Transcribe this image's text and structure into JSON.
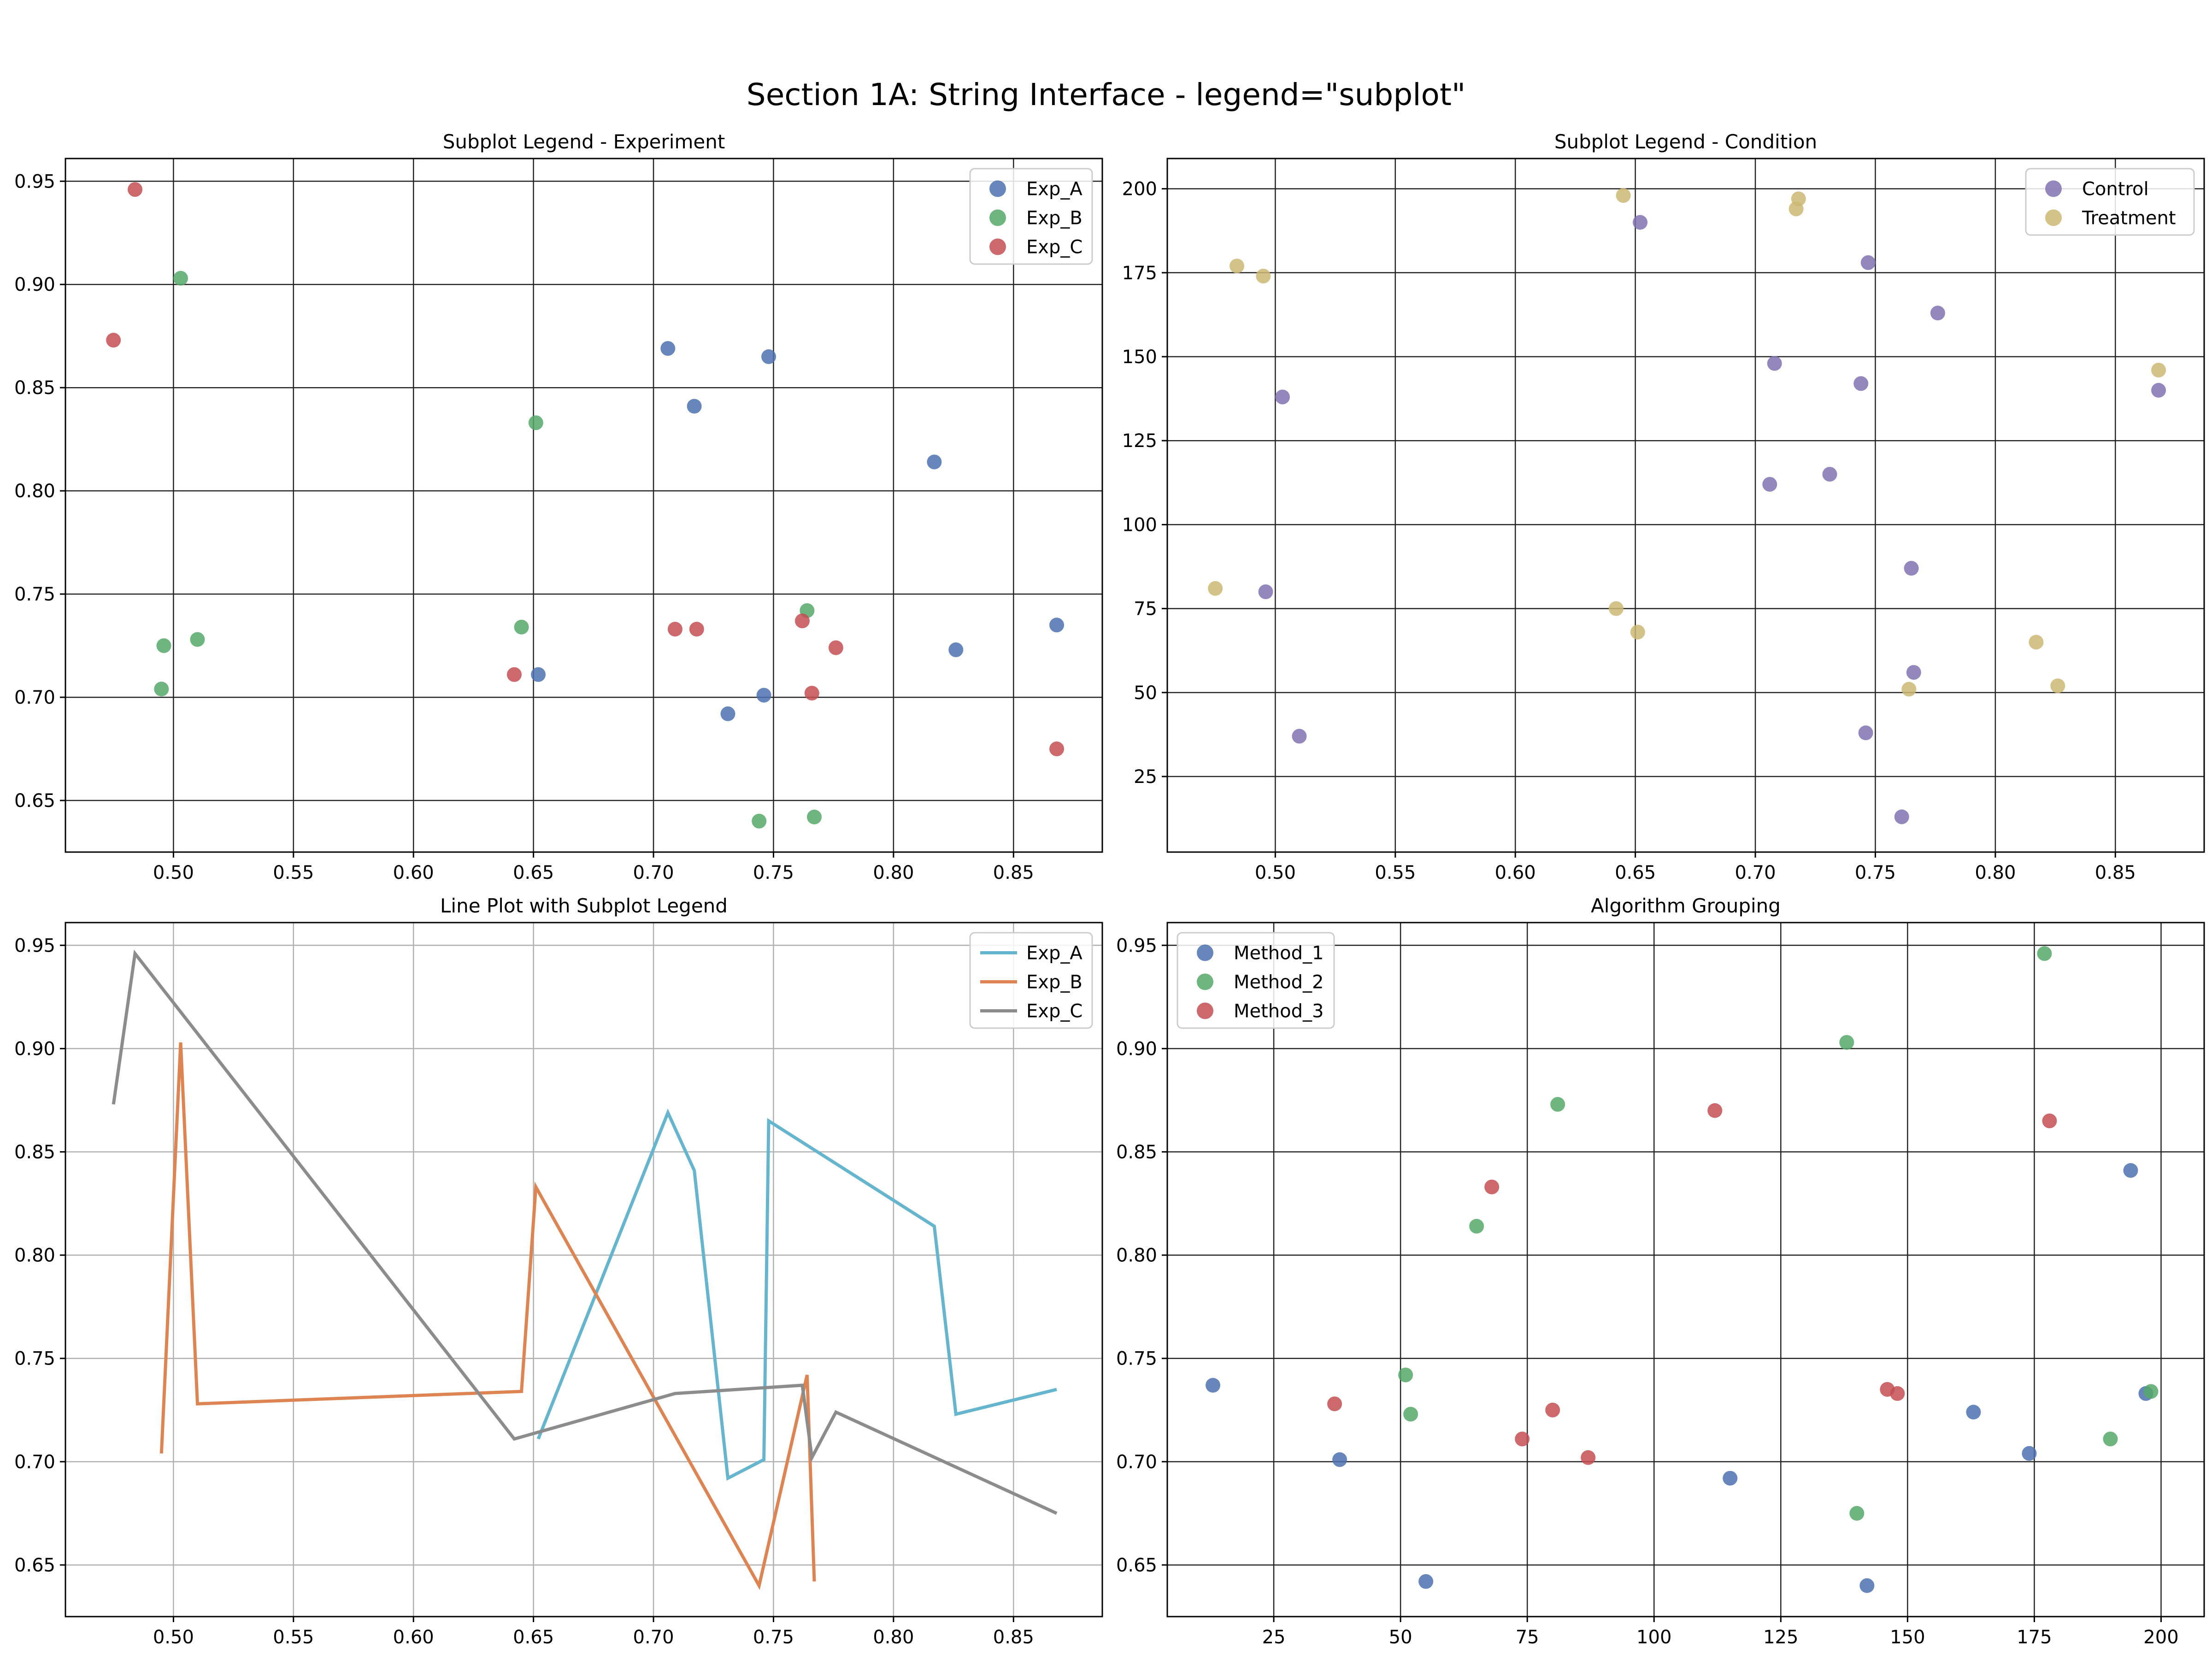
{
  "figure": {
    "title": "Section 1A: String Interface - legend=\"subplot\""
  },
  "chart_data": [
    {
      "type": "scatter",
      "title": "Subplot Legend - Experiment",
      "xlabel": "",
      "ylabel": "",
      "xlim": [
        0.455,
        0.887
      ],
      "ylim": [
        0.625,
        0.961
      ],
      "xticks": [
        0.5,
        0.55,
        0.6,
        0.65,
        0.7,
        0.75,
        0.8,
        0.85
      ],
      "xtick_labels": [
        "0.50",
        "0.55",
        "0.60",
        "0.65",
        "0.70",
        "0.75",
        "0.80",
        "0.85"
      ],
      "yticks": [
        0.65,
        0.7,
        0.75,
        0.8,
        0.85,
        0.9,
        0.95
      ],
      "ytick_labels": [
        "0.65",
        "0.70",
        "0.75",
        "0.80",
        "0.85",
        "0.90",
        "0.95"
      ],
      "grid": true,
      "grid_color": "#222222",
      "legend_position": "top-right",
      "series": [
        {
          "name": "Exp_A",
          "color": "#4c72b0",
          "points": [
            [
              0.706,
              0.869
            ],
            [
              0.717,
              0.841
            ],
            [
              0.748,
              0.865
            ],
            [
              0.817,
              0.814
            ],
            [
              0.652,
              0.711
            ],
            [
              0.731,
              0.692
            ],
            [
              0.746,
              0.701
            ],
            [
              0.826,
              0.723
            ],
            [
              0.868,
              0.735
            ]
          ]
        },
        {
          "name": "Exp_B",
          "color": "#55a868",
          "points": [
            [
              0.503,
              0.903
            ],
            [
              0.651,
              0.833
            ],
            [
              0.496,
              0.725
            ],
            [
              0.51,
              0.728
            ],
            [
              0.495,
              0.704
            ],
            [
              0.645,
              0.734
            ],
            [
              0.764,
              0.742
            ],
            [
              0.744,
              0.64
            ],
            [
              0.767,
              0.642
            ]
          ]
        },
        {
          "name": "Exp_C",
          "color": "#c44e52",
          "points": [
            [
              0.475,
              0.873
            ],
            [
              0.484,
              0.946
            ],
            [
              0.642,
              0.711
            ],
            [
              0.709,
              0.733
            ],
            [
              0.718,
              0.733
            ],
            [
              0.762,
              0.737
            ],
            [
              0.776,
              0.724
            ],
            [
              0.766,
              0.702
            ],
            [
              0.868,
              0.675
            ]
          ]
        }
      ]
    },
    {
      "type": "scatter",
      "title": "Subplot Legend - Condition",
      "xlabel": "",
      "ylabel": "",
      "xlim": [
        0.455,
        0.887
      ],
      "ylim": [
        2.5,
        209
      ],
      "xticks": [
        0.5,
        0.55,
        0.6,
        0.65,
        0.7,
        0.75,
        0.8,
        0.85
      ],
      "xtick_labels": [
        "0.50",
        "0.55",
        "0.60",
        "0.65",
        "0.70",
        "0.75",
        "0.80",
        "0.85"
      ],
      "yticks": [
        25,
        50,
        75,
        100,
        125,
        150,
        175,
        200
      ],
      "ytick_labels": [
        "25",
        "50",
        "75",
        "100",
        "125",
        "150",
        "175",
        "200"
      ],
      "grid": true,
      "grid_color": "#222222",
      "legend_position": "top-right",
      "series": [
        {
          "name": "Control",
          "color": "#8172b2",
          "points": [
            [
              0.652,
              190
            ],
            [
              0.747,
              178
            ],
            [
              0.776,
              163
            ],
            [
              0.503,
              138
            ],
            [
              0.708,
              148
            ],
            [
              0.744,
              142
            ],
            [
              0.731,
              115
            ],
            [
              0.706,
              112
            ],
            [
              0.496,
              80
            ],
            [
              0.765,
              87
            ],
            [
              0.766,
              56
            ],
            [
              0.746,
              38
            ],
            [
              0.51,
              37
            ],
            [
              0.761,
              13
            ],
            [
              0.868,
              140
            ]
          ]
        },
        {
          "name": "Treatment",
          "color": "#ccb974",
          "points": [
            [
              0.645,
              198
            ],
            [
              0.718,
              197
            ],
            [
              0.717,
              194
            ],
            [
              0.484,
              177
            ],
            [
              0.495,
              174
            ],
            [
              0.475,
              81
            ],
            [
              0.642,
              75
            ],
            [
              0.651,
              68
            ],
            [
              0.817,
              65
            ],
            [
              0.764,
              51
            ],
            [
              0.826,
              52
            ],
            [
              0.868,
              146
            ]
          ]
        }
      ]
    },
    {
      "type": "line",
      "title": "Line Plot with Subplot Legend",
      "xlabel": "",
      "ylabel": "",
      "xlim": [
        0.455,
        0.887
      ],
      "ylim": [
        0.625,
        0.961
      ],
      "xticks": [
        0.5,
        0.55,
        0.6,
        0.65,
        0.7,
        0.75,
        0.8,
        0.85
      ],
      "xtick_labels": [
        "0.50",
        "0.55",
        "0.60",
        "0.65",
        "0.70",
        "0.75",
        "0.80",
        "0.85"
      ],
      "yticks": [
        0.65,
        0.7,
        0.75,
        0.8,
        0.85,
        0.9,
        0.95
      ],
      "ytick_labels": [
        "0.65",
        "0.70",
        "0.75",
        "0.80",
        "0.85",
        "0.90",
        "0.95"
      ],
      "grid": true,
      "grid_color": "#b0b0b0",
      "legend_position": "top-right",
      "series": [
        {
          "name": "Exp_A",
          "color": "#64b5cd",
          "points": [
            [
              0.652,
              0.711
            ],
            [
              0.706,
              0.869
            ],
            [
              0.717,
              0.841
            ],
            [
              0.731,
              0.692
            ],
            [
              0.746,
              0.701
            ],
            [
              0.748,
              0.865
            ],
            [
              0.817,
              0.814
            ],
            [
              0.826,
              0.723
            ],
            [
              0.868,
              0.735
            ]
          ]
        },
        {
          "name": "Exp_B",
          "color": "#dd8452",
          "points": [
            [
              0.495,
              0.704
            ],
            [
              0.503,
              0.903
            ],
            [
              0.51,
              0.728
            ],
            [
              0.645,
              0.734
            ],
            [
              0.651,
              0.833
            ],
            [
              0.744,
              0.64
            ],
            [
              0.764,
              0.742
            ],
            [
              0.767,
              0.642
            ]
          ]
        },
        {
          "name": "Exp_C",
          "color": "#8c8c8c",
          "points": [
            [
              0.475,
              0.873
            ],
            [
              0.484,
              0.946
            ],
            [
              0.642,
              0.711
            ],
            [
              0.709,
              0.733
            ],
            [
              0.762,
              0.737
            ],
            [
              0.766,
              0.702
            ],
            [
              0.776,
              0.724
            ],
            [
              0.868,
              0.675
            ]
          ]
        }
      ]
    },
    {
      "type": "scatter",
      "title": "Algorithm Grouping",
      "xlabel": "",
      "ylabel": "",
      "xlim": [
        4,
        208.5
      ],
      "ylim": [
        0.625,
        0.961
      ],
      "xticks": [
        25,
        50,
        75,
        100,
        125,
        150,
        175,
        200
      ],
      "xtick_labels": [
        "25",
        "50",
        "75",
        "100",
        "125",
        "150",
        "175",
        "200"
      ],
      "yticks": [
        0.65,
        0.7,
        0.75,
        0.8,
        0.85,
        0.9,
        0.95
      ],
      "ytick_labels": [
        "0.65",
        "0.70",
        "0.75",
        "0.80",
        "0.85",
        "0.90",
        "0.95"
      ],
      "grid": true,
      "grid_color": "#222222",
      "legend_position": "top-left",
      "series": [
        {
          "name": "Method_1",
          "color": "#4c72b0",
          "points": [
            [
              13,
              0.737
            ],
            [
              38,
              0.701
            ],
            [
              55,
              0.642
            ],
            [
              115,
              0.692
            ],
            [
              142,
              0.64
            ],
            [
              163,
              0.724
            ],
            [
              174,
              0.704
            ],
            [
              194,
              0.841
            ],
            [
              197,
              0.733
            ]
          ]
        },
        {
          "name": "Method_2",
          "color": "#55a868",
          "points": [
            [
              177,
              0.946
            ],
            [
              138,
              0.903
            ],
            [
              81,
              0.873
            ],
            [
              65,
              0.814
            ],
            [
              51,
              0.742
            ],
            [
              52,
              0.723
            ],
            [
              140,
              0.675
            ],
            [
              190,
              0.711
            ],
            [
              198,
              0.734
            ]
          ]
        },
        {
          "name": "Method_3",
          "color": "#c44e52",
          "points": [
            [
              112,
              0.87
            ],
            [
              178,
              0.865
            ],
            [
              68,
              0.833
            ],
            [
              37,
              0.728
            ],
            [
              80,
              0.725
            ],
            [
              74,
              0.711
            ],
            [
              87,
              0.702
            ],
            [
              146,
              0.735
            ],
            [
              148,
              0.733
            ]
          ]
        }
      ]
    }
  ]
}
